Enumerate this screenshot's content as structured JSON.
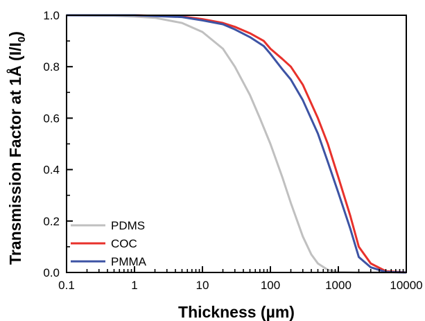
{
  "chart_data": {
    "type": "line",
    "xscale": "log",
    "xlim": [
      0.1,
      10000
    ],
    "ylim": [
      0,
      1.0
    ],
    "x_ticks": [
      0.1,
      1,
      10,
      100,
      1000,
      10000
    ],
    "x_tick_labels": [
      "0.1",
      "1",
      "10",
      "100",
      "1000",
      "10000"
    ],
    "y_ticks": [
      0,
      0.2,
      0.4,
      0.6,
      0.8,
      1.0
    ],
    "y_tick_labels": [
      "0.0",
      "0.2",
      "0.4",
      "0.6",
      "0.8",
      "1.0"
    ],
    "xlabel": "Thickness (µm)",
    "ylabel": {
      "main": "Transmission Factor at 1Å  (I/I",
      "sub": "0",
      "tail": ")"
    },
    "grid": false,
    "legend_position": "bottom-left",
    "series": [
      {
        "name": "PDMS",
        "color": "#c0c0c0",
        "points": [
          [
            0.1,
            1.0
          ],
          [
            0.5,
            0.998
          ],
          [
            1,
            0.995
          ],
          [
            2,
            0.99
          ],
          [
            5,
            0.97
          ],
          [
            10,
            0.935
          ],
          [
            20,
            0.87
          ],
          [
            30,
            0.8
          ],
          [
            50,
            0.69
          ],
          [
            70,
            0.6
          ],
          [
            100,
            0.5
          ],
          [
            150,
            0.37
          ],
          [
            200,
            0.27
          ],
          [
            300,
            0.14
          ],
          [
            400,
            0.07
          ],
          [
            500,
            0.035
          ],
          [
            700,
            0.01
          ],
          [
            1000,
            0.002
          ],
          [
            2000,
            0.0
          ],
          [
            10000,
            0.0
          ]
        ]
      },
      {
        "name": "COC",
        "color": "#e8312b",
        "points": [
          [
            0.1,
            1.0
          ],
          [
            1,
            1.0
          ],
          [
            5,
            0.995
          ],
          [
            10,
            0.985
          ],
          [
            20,
            0.97
          ],
          [
            30,
            0.955
          ],
          [
            50,
            0.93
          ],
          [
            80,
            0.9
          ],
          [
            100,
            0.87
          ],
          [
            150,
            0.83
          ],
          [
            200,
            0.8
          ],
          [
            300,
            0.73
          ],
          [
            500,
            0.6
          ],
          [
            700,
            0.5
          ],
          [
            1000,
            0.37
          ],
          [
            1500,
            0.22
          ],
          [
            2000,
            0.1
          ],
          [
            3000,
            0.035
          ],
          [
            5000,
            0.005
          ],
          [
            10000,
            0.0
          ]
        ]
      },
      {
        "name": "PMMA",
        "color": "#3d53a4",
        "points": [
          [
            0.1,
            1.0
          ],
          [
            1,
            1.0
          ],
          [
            5,
            0.993
          ],
          [
            10,
            0.98
          ],
          [
            20,
            0.965
          ],
          [
            30,
            0.945
          ],
          [
            50,
            0.915
          ],
          [
            80,
            0.88
          ],
          [
            100,
            0.85
          ],
          [
            150,
            0.79
          ],
          [
            200,
            0.75
          ],
          [
            300,
            0.67
          ],
          [
            500,
            0.54
          ],
          [
            700,
            0.43
          ],
          [
            1000,
            0.31
          ],
          [
            1500,
            0.17
          ],
          [
            2000,
            0.06
          ],
          [
            3000,
            0.02
          ],
          [
            5000,
            0.002
          ],
          [
            10000,
            0.0
          ]
        ]
      }
    ]
  }
}
